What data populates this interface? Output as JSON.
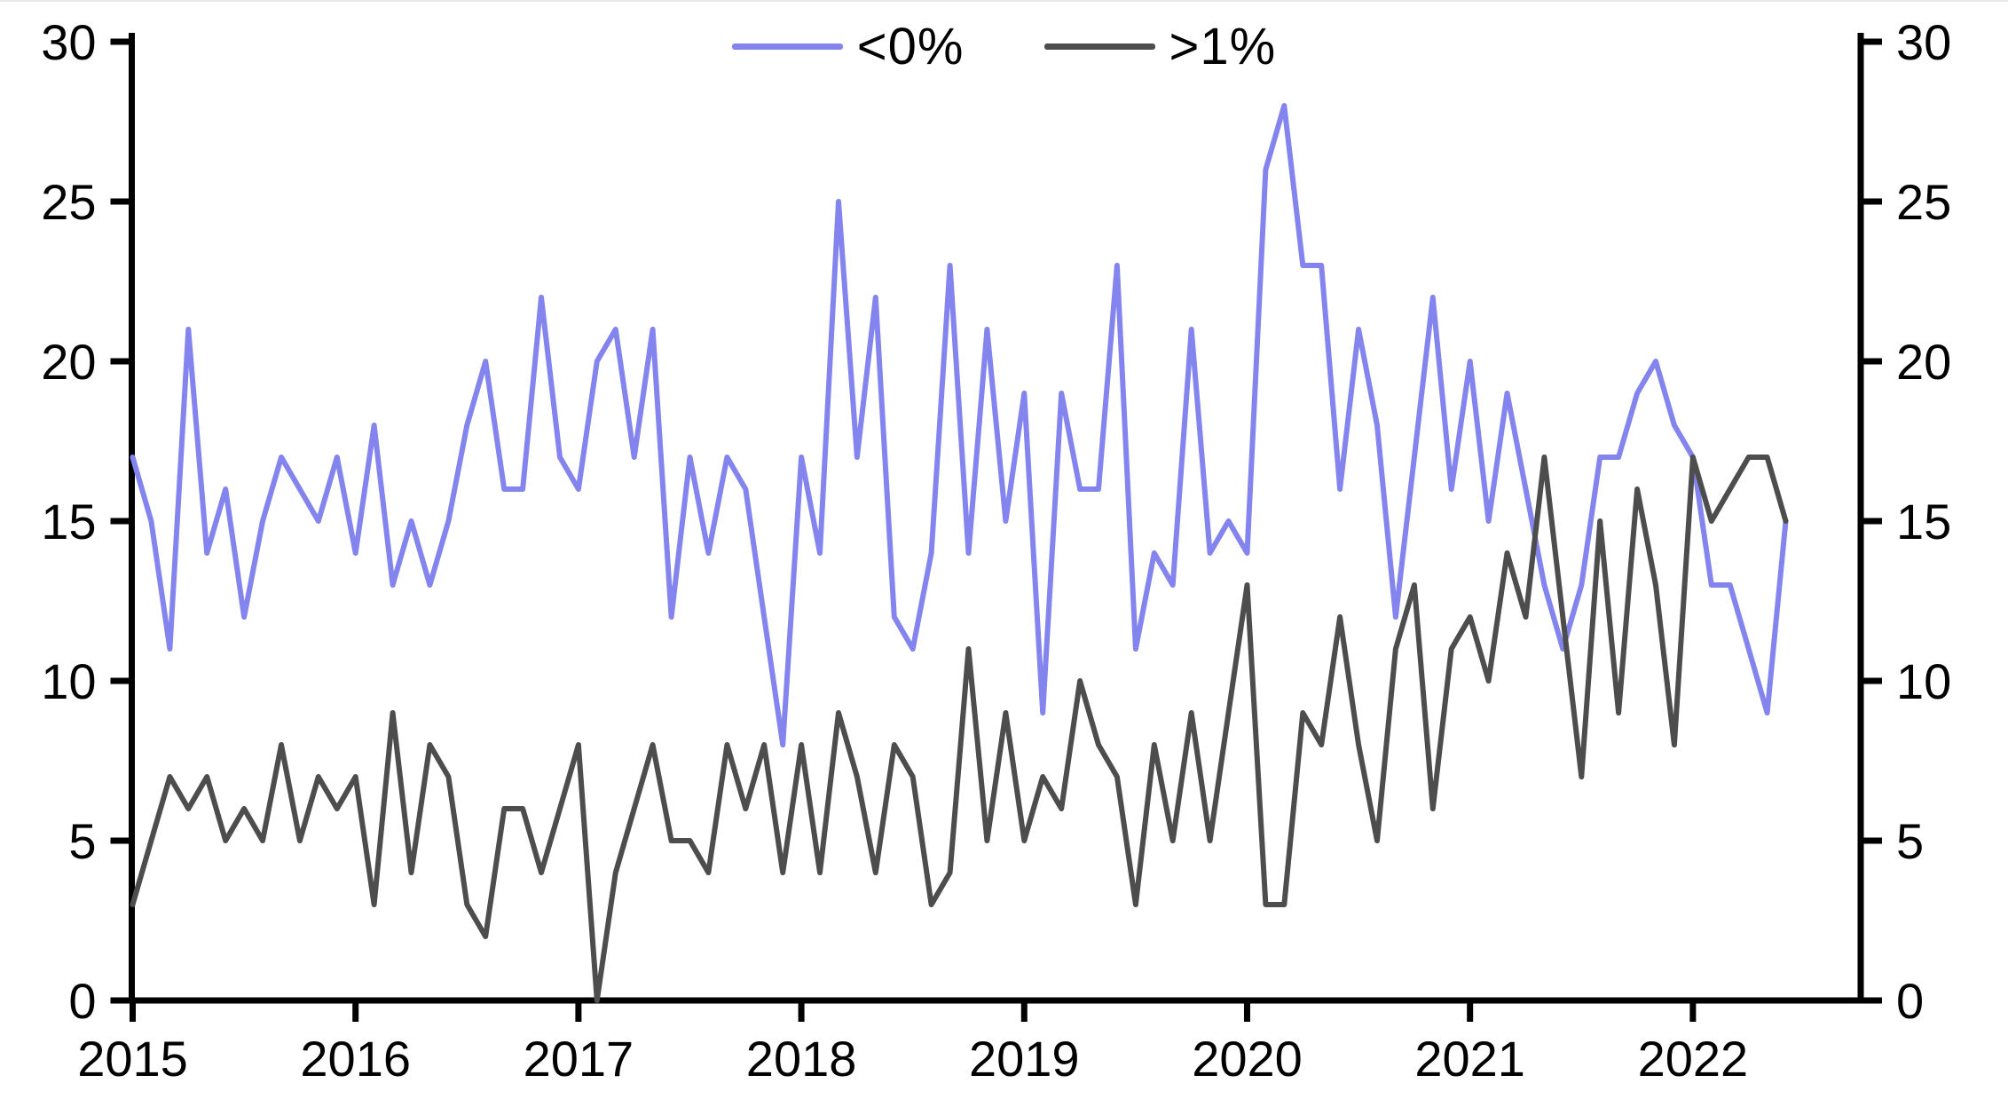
{
  "chart_data": {
    "type": "line",
    "title": "",
    "frequency": "monthly",
    "x_start": "2015-01",
    "x_end": "2022-06",
    "x_tick_labels": [
      "2015",
      "2016",
      "2017",
      "2018",
      "2019",
      "2020",
      "2021",
      "2022"
    ],
    "y_ticks_left": [
      "0",
      "5",
      "10",
      "15",
      "20",
      "25",
      "30"
    ],
    "y_ticks_right": [
      "0",
      "5",
      "10",
      "15",
      "20",
      "25",
      "30"
    ],
    "ylim": [
      0,
      30
    ],
    "dual_axis": true,
    "grid": false,
    "legend_position": "top-center",
    "series": [
      {
        "name": "<0%",
        "color": "#8484ee",
        "values": [
          17,
          15,
          11,
          21,
          14,
          16,
          12,
          15,
          17,
          16,
          15,
          17,
          14,
          18,
          13,
          15,
          13,
          15,
          18,
          20,
          16,
          16,
          22,
          17,
          16,
          20,
          21,
          17,
          21,
          12,
          17,
          14,
          17,
          16,
          12,
          8,
          17,
          14,
          25,
          17,
          22,
          12,
          11,
          14,
          23,
          14,
          21,
          15,
          19,
          9,
          19,
          16,
          16,
          23,
          11,
          14,
          13,
          21,
          14,
          15,
          14,
          26,
          28,
          23,
          23,
          16,
          21,
          18,
          12,
          17,
          22,
          16,
          20,
          15,
          19,
          16,
          13,
          11,
          13,
          17,
          17,
          19,
          20,
          18,
          17,
          13,
          13,
          11,
          9,
          15
        ]
      },
      {
        "name": ">1%",
        "color": "#4d4d4d",
        "values": [
          3,
          5,
          7,
          6,
          7,
          5,
          6,
          5,
          8,
          5,
          7,
          6,
          7,
          3,
          9,
          4,
          8,
          7,
          3,
          2,
          6,
          6,
          4,
          6,
          8,
          0,
          4,
          6,
          8,
          5,
          5,
          4,
          8,
          6,
          8,
          4,
          8,
          4,
          9,
          7,
          4,
          8,
          7,
          3,
          4,
          11,
          5,
          9,
          5,
          7,
          6,
          10,
          8,
          7,
          3,
          8,
          5,
          9,
          5,
          9,
          13,
          3,
          3,
          9,
          8,
          12,
          8,
          5,
          11,
          13,
          6,
          11,
          12,
          10,
          14,
          12,
          17,
          12,
          7,
          15,
          9,
          16,
          13,
          8,
          17,
          15,
          16,
          17,
          17,
          15
        ]
      }
    ]
  },
  "legend": {
    "lt0_label": "<0%",
    "gt1_label": ">1%"
  },
  "colors": {
    "series_lt0": "#8484ee",
    "series_gt1": "#4d4d4d",
    "axis": "#000000",
    "background": "#ffffff"
  }
}
